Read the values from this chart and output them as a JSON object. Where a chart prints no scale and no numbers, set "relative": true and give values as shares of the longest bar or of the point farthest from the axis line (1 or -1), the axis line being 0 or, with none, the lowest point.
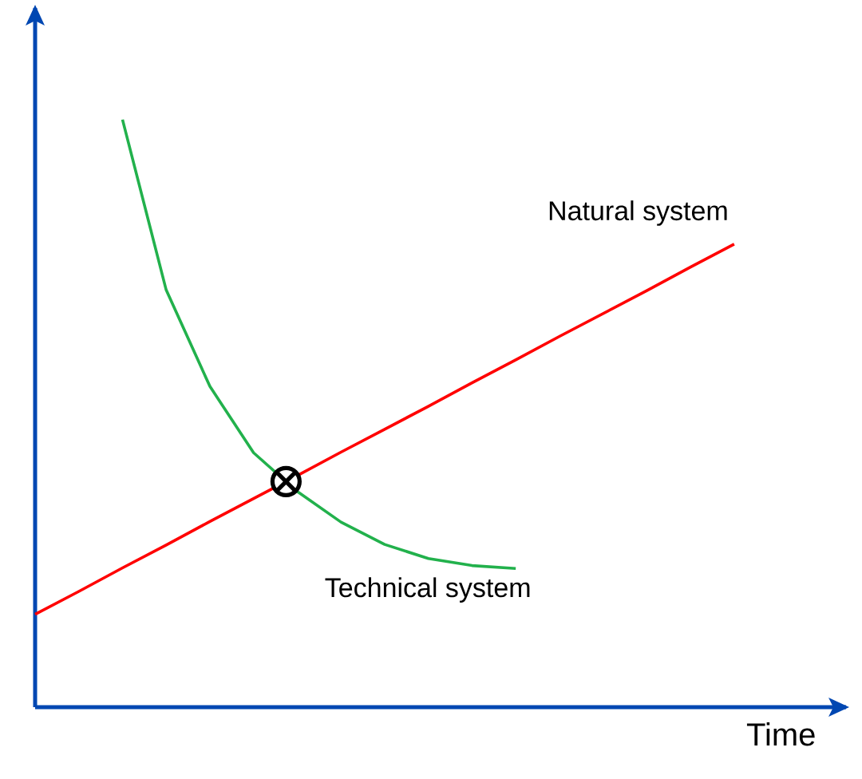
{
  "chart_data": {
    "type": "line",
    "relative": true,
    "xlabel": "Time",
    "categories": [
      null,
      null,
      null,
      null,
      null,
      null,
      null,
      null,
      null,
      null,
      null,
      null,
      null,
      null,
      null,
      null,
      null
    ],
    "tick_labels": false,
    "series": [
      {
        "name": "Natural system",
        "color": "#ff0000",
        "values": [
          0.158,
          0.197,
          0.237,
          0.276,
          0.316,
          0.355,
          0.394,
          0.434,
          0.473,
          0.512,
          0.552,
          0.591,
          0.631,
          0.67,
          0.709,
          0.749,
          0.788
        ]
      },
      {
        "name": "Technical system",
        "color": "#22b14c",
        "values": [
          null,
          null,
          1.0,
          0.71,
          0.546,
          0.433,
          0.367,
          0.315,
          0.277,
          0.253,
          0.241,
          0.236,
          null,
          null,
          null,
          null,
          null
        ]
      }
    ]
  }
}
